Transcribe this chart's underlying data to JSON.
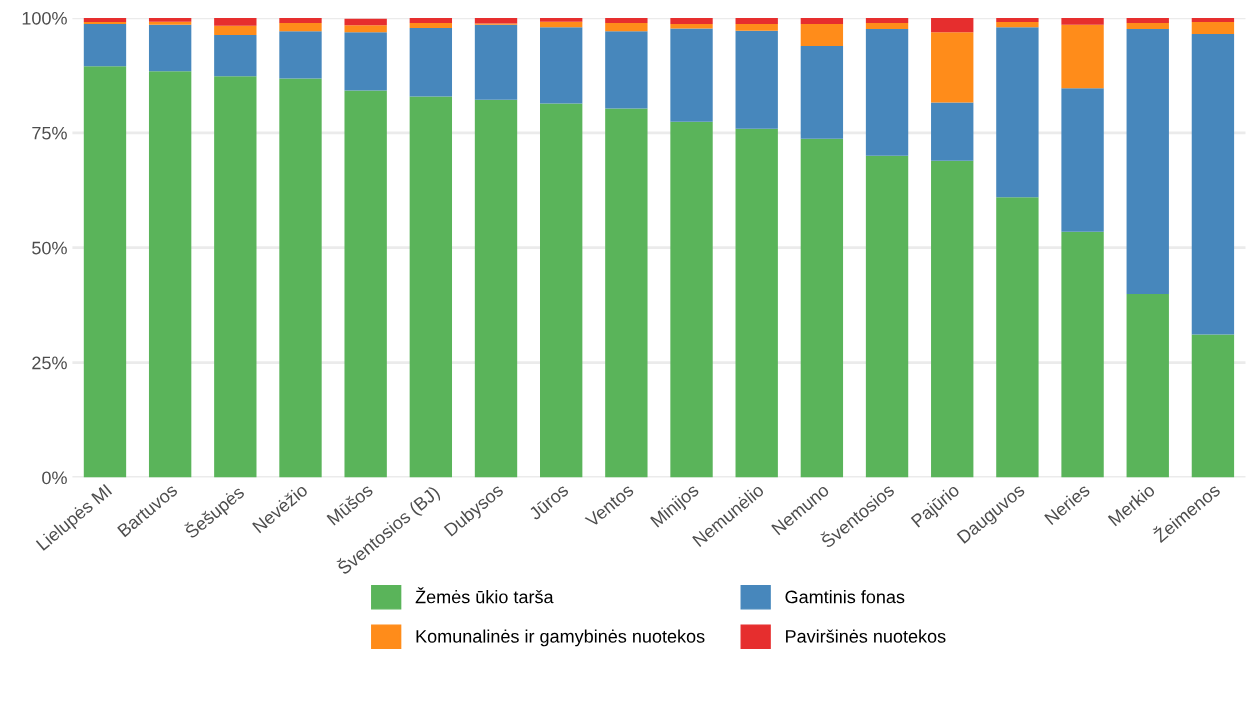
{
  "chart_data": {
    "type": "bar",
    "stacked": true,
    "categories": [
      "Lielupės MI",
      "Bartuvos",
      "Šešupės",
      "Nevėžio",
      "Mūšos",
      "Šventosios (BJ)",
      "Dubysos",
      "Jūros",
      "Ventos",
      "Minijos",
      "Nemunėlio",
      "Nemuno",
      "Šventosios",
      "Pajūrio",
      "Dauguvos",
      "Neries",
      "Merkio",
      "Žeimenos"
    ],
    "series": [
      {
        "name": "Žemės ūkio tarša",
        "color": "#5ab45a",
        "values": [
          89.5,
          88.4,
          87.3,
          86.8,
          84.2,
          82.9,
          82.2,
          81.4,
          80.3,
          77.4,
          75.9,
          73.7,
          70.0,
          68.9,
          61.0,
          53.5,
          39.9,
          31.1
        ]
      },
      {
        "name": "Gamtinis fonas",
        "color": "#4787bc",
        "values": [
          9.2,
          10.1,
          9.0,
          10.3,
          12.7,
          14.9,
          16.3,
          16.6,
          16.8,
          20.3,
          21.3,
          20.2,
          27.6,
          12.7,
          37.0,
          31.2,
          57.7,
          65.4
        ]
      },
      {
        "name": "Komunalinės ir gamybinės nuotekos",
        "color": "#ff8c1a",
        "values": [
          0.4,
          0.7,
          2.0,
          1.8,
          1.5,
          1.1,
          0.3,
          1.2,
          1.8,
          1.0,
          1.5,
          4.8,
          1.3,
          15.3,
          1.1,
          13.8,
          1.3,
          2.6
        ]
      },
      {
        "name": "Paviršinės nuotekos",
        "color": "#e62e2e",
        "values": [
          0.9,
          0.8,
          1.8,
          1.1,
          1.4,
          1.1,
          1.2,
          0.8,
          1.1,
          1.3,
          1.3,
          1.3,
          1.1,
          3.1,
          0.9,
          1.5,
          1.1,
          0.9
        ]
      }
    ],
    "ylim": [
      0,
      100
    ],
    "yticks": [
      {
        "value": 0,
        "label": "0%"
      },
      {
        "value": 25,
        "label": "25%"
      },
      {
        "value": 50,
        "label": "50%"
      },
      {
        "value": 75,
        "label": "75%"
      },
      {
        "value": 100,
        "label": "100%"
      }
    ],
    "grid": "y",
    "legend": "bottom"
  }
}
